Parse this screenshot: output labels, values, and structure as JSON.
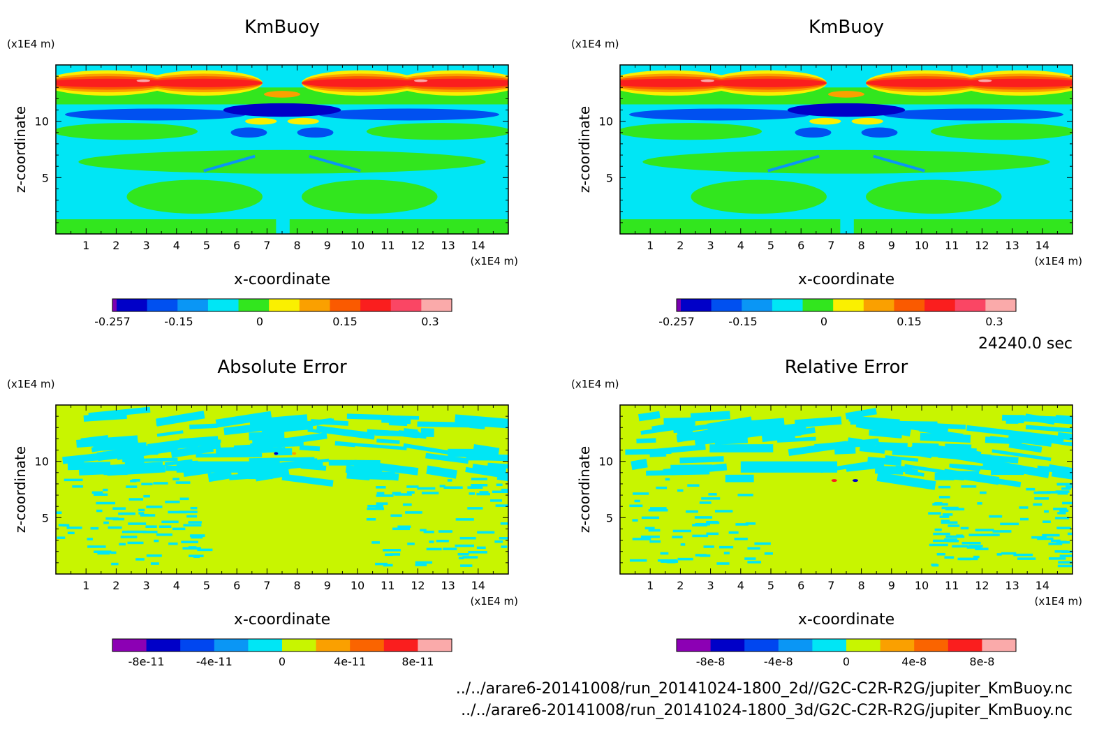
{
  "time_label": "24240.0 sec",
  "files": [
    "../../arare6-20141008/run_20141024-1800_2d//G2C-C2R-R2G/jupiter_KmBuoy.nc",
    "../../arare6-20141008/run_20141024-1800_3d/G2C-C2R-R2G/jupiter_KmBuoy.nc"
  ],
  "chart_data": [
    {
      "type": "heatmap",
      "title": "KmBuoy",
      "xlabel": "x-coordinate",
      "ylabel": "z-coordinate",
      "x_unit": "(x1E4 m)",
      "z_unit": "(x1E4 m)",
      "xlim": [
        0,
        15
      ],
      "zlim": [
        0,
        15
      ],
      "x_ticks": [
        "1",
        "2",
        "3",
        "4",
        "5",
        "6",
        "7",
        "8",
        "9",
        "10",
        "11",
        "12",
        "13",
        "14"
      ],
      "z_ticks": [
        "5",
        "10"
      ],
      "colorbar": {
        "colors": [
          "#7a00b0",
          "#0000c8",
          "#0050f0",
          "#0a96f5",
          "#00e6f5",
          "#32e61e",
          "#faf000",
          "#faa000",
          "#fa5a00",
          "#fa1e1e",
          "#fa4664",
          "#faaaaa"
        ],
        "labels": [
          "-0.257",
          "-0.15",
          "0",
          "0.15",
          "0.3"
        ]
      }
    },
    {
      "type": "heatmap",
      "title": "KmBuoy",
      "xlabel": "x-coordinate",
      "ylabel": "z-coordinate",
      "x_unit": "(x1E4 m)",
      "z_unit": "(x1E4 m)",
      "xlim": [
        0,
        15
      ],
      "zlim": [
        0,
        15
      ],
      "x_ticks": [
        "1",
        "2",
        "3",
        "4",
        "5",
        "6",
        "7",
        "8",
        "9",
        "10",
        "11",
        "12",
        "13",
        "14"
      ],
      "z_ticks": [
        "5",
        "10"
      ],
      "colorbar": {
        "colors": [
          "#7a00b0",
          "#0000c8",
          "#0050f0",
          "#0a96f5",
          "#00e6f5",
          "#32e61e",
          "#faf000",
          "#faa000",
          "#fa5a00",
          "#fa1e1e",
          "#fa4664",
          "#faaaaa"
        ],
        "labels": [
          "-0.257",
          "-0.15",
          "0",
          "0.15",
          "0.3"
        ]
      }
    },
    {
      "type": "heatmap",
      "title": "Absolute Error",
      "xlabel": "x-coordinate",
      "ylabel": "z-coordinate",
      "x_unit": "(x1E4 m)",
      "z_unit": "(x1E4 m)",
      "xlim": [
        0,
        15
      ],
      "zlim": [
        0,
        15
      ],
      "x_ticks": [
        "1",
        "2",
        "3",
        "4",
        "5",
        "6",
        "7",
        "8",
        "9",
        "10",
        "11",
        "12",
        "13",
        "14"
      ],
      "z_ticks": [
        "5",
        "10"
      ],
      "colorbar": {
        "colors": [
          "#8c00b4",
          "#0000c8",
          "#0046f0",
          "#0a96f5",
          "#00e6f5",
          "#c8f500",
          "#faa000",
          "#fa6400",
          "#fa1e1e",
          "#faaaaa"
        ],
        "labels": [
          "-8e-11",
          "-4e-11",
          "0",
          "4e-11",
          "8e-11"
        ]
      }
    },
    {
      "type": "heatmap",
      "title": "Relative Error",
      "xlabel": "x-coordinate",
      "ylabel": "z-coordinate",
      "x_unit": "(x1E4 m)",
      "z_unit": "(x1E4 m)",
      "xlim": [
        0,
        15
      ],
      "zlim": [
        0,
        15
      ],
      "x_ticks": [
        "1",
        "2",
        "3",
        "4",
        "5",
        "6",
        "7",
        "8",
        "9",
        "10",
        "11",
        "12",
        "13",
        "14"
      ],
      "z_ticks": [
        "5",
        "10"
      ],
      "colorbar": {
        "colors": [
          "#8c00b4",
          "#0000c8",
          "#0046f0",
          "#0a96f5",
          "#00e6f5",
          "#c8f500",
          "#faa000",
          "#fa6400",
          "#fa1e1e",
          "#faaaaa"
        ],
        "labels": [
          "-8e-8",
          "-4e-8",
          "0",
          "4e-8",
          "8e-8"
        ]
      }
    }
  ]
}
